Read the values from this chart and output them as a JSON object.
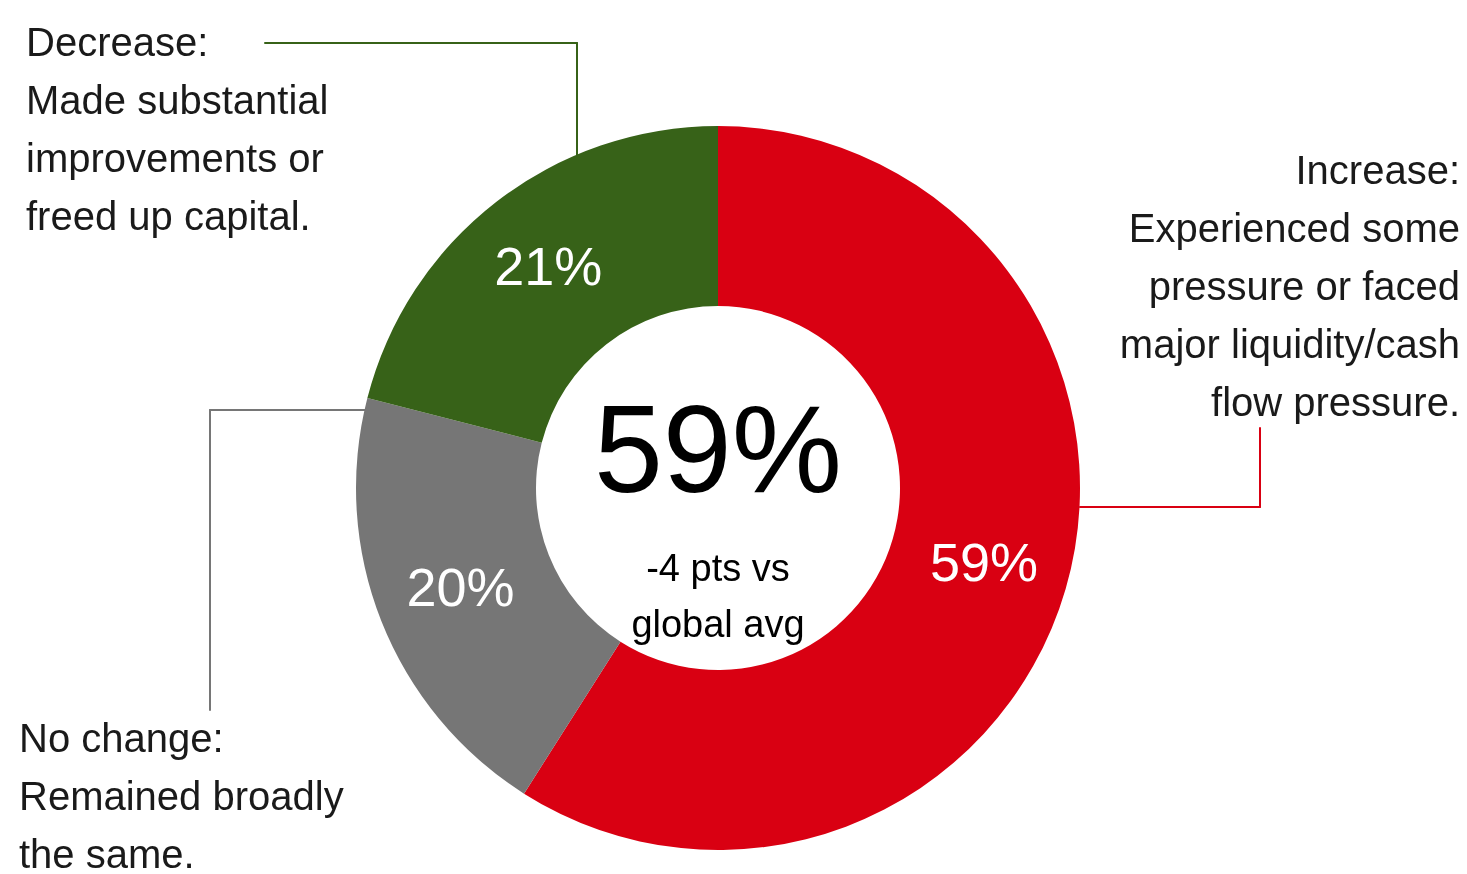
{
  "chart_data": {
    "type": "donut",
    "categories": [
      "Increase: Experienced some pressure or faced major liquidity/cash flow pressure.",
      "No change: Remained broadly the same.",
      "Decrease: Made substantial improvements or freed up capital."
    ],
    "values": [
      59,
      20,
      21
    ],
    "colors": [
      "#d90012",
      "#767676",
      "#376218"
    ],
    "value_labels": [
      "59%",
      "20%",
      "21%"
    ],
    "annotations": [
      "59%",
      "-4 pts vs global avg"
    ]
  }
}
